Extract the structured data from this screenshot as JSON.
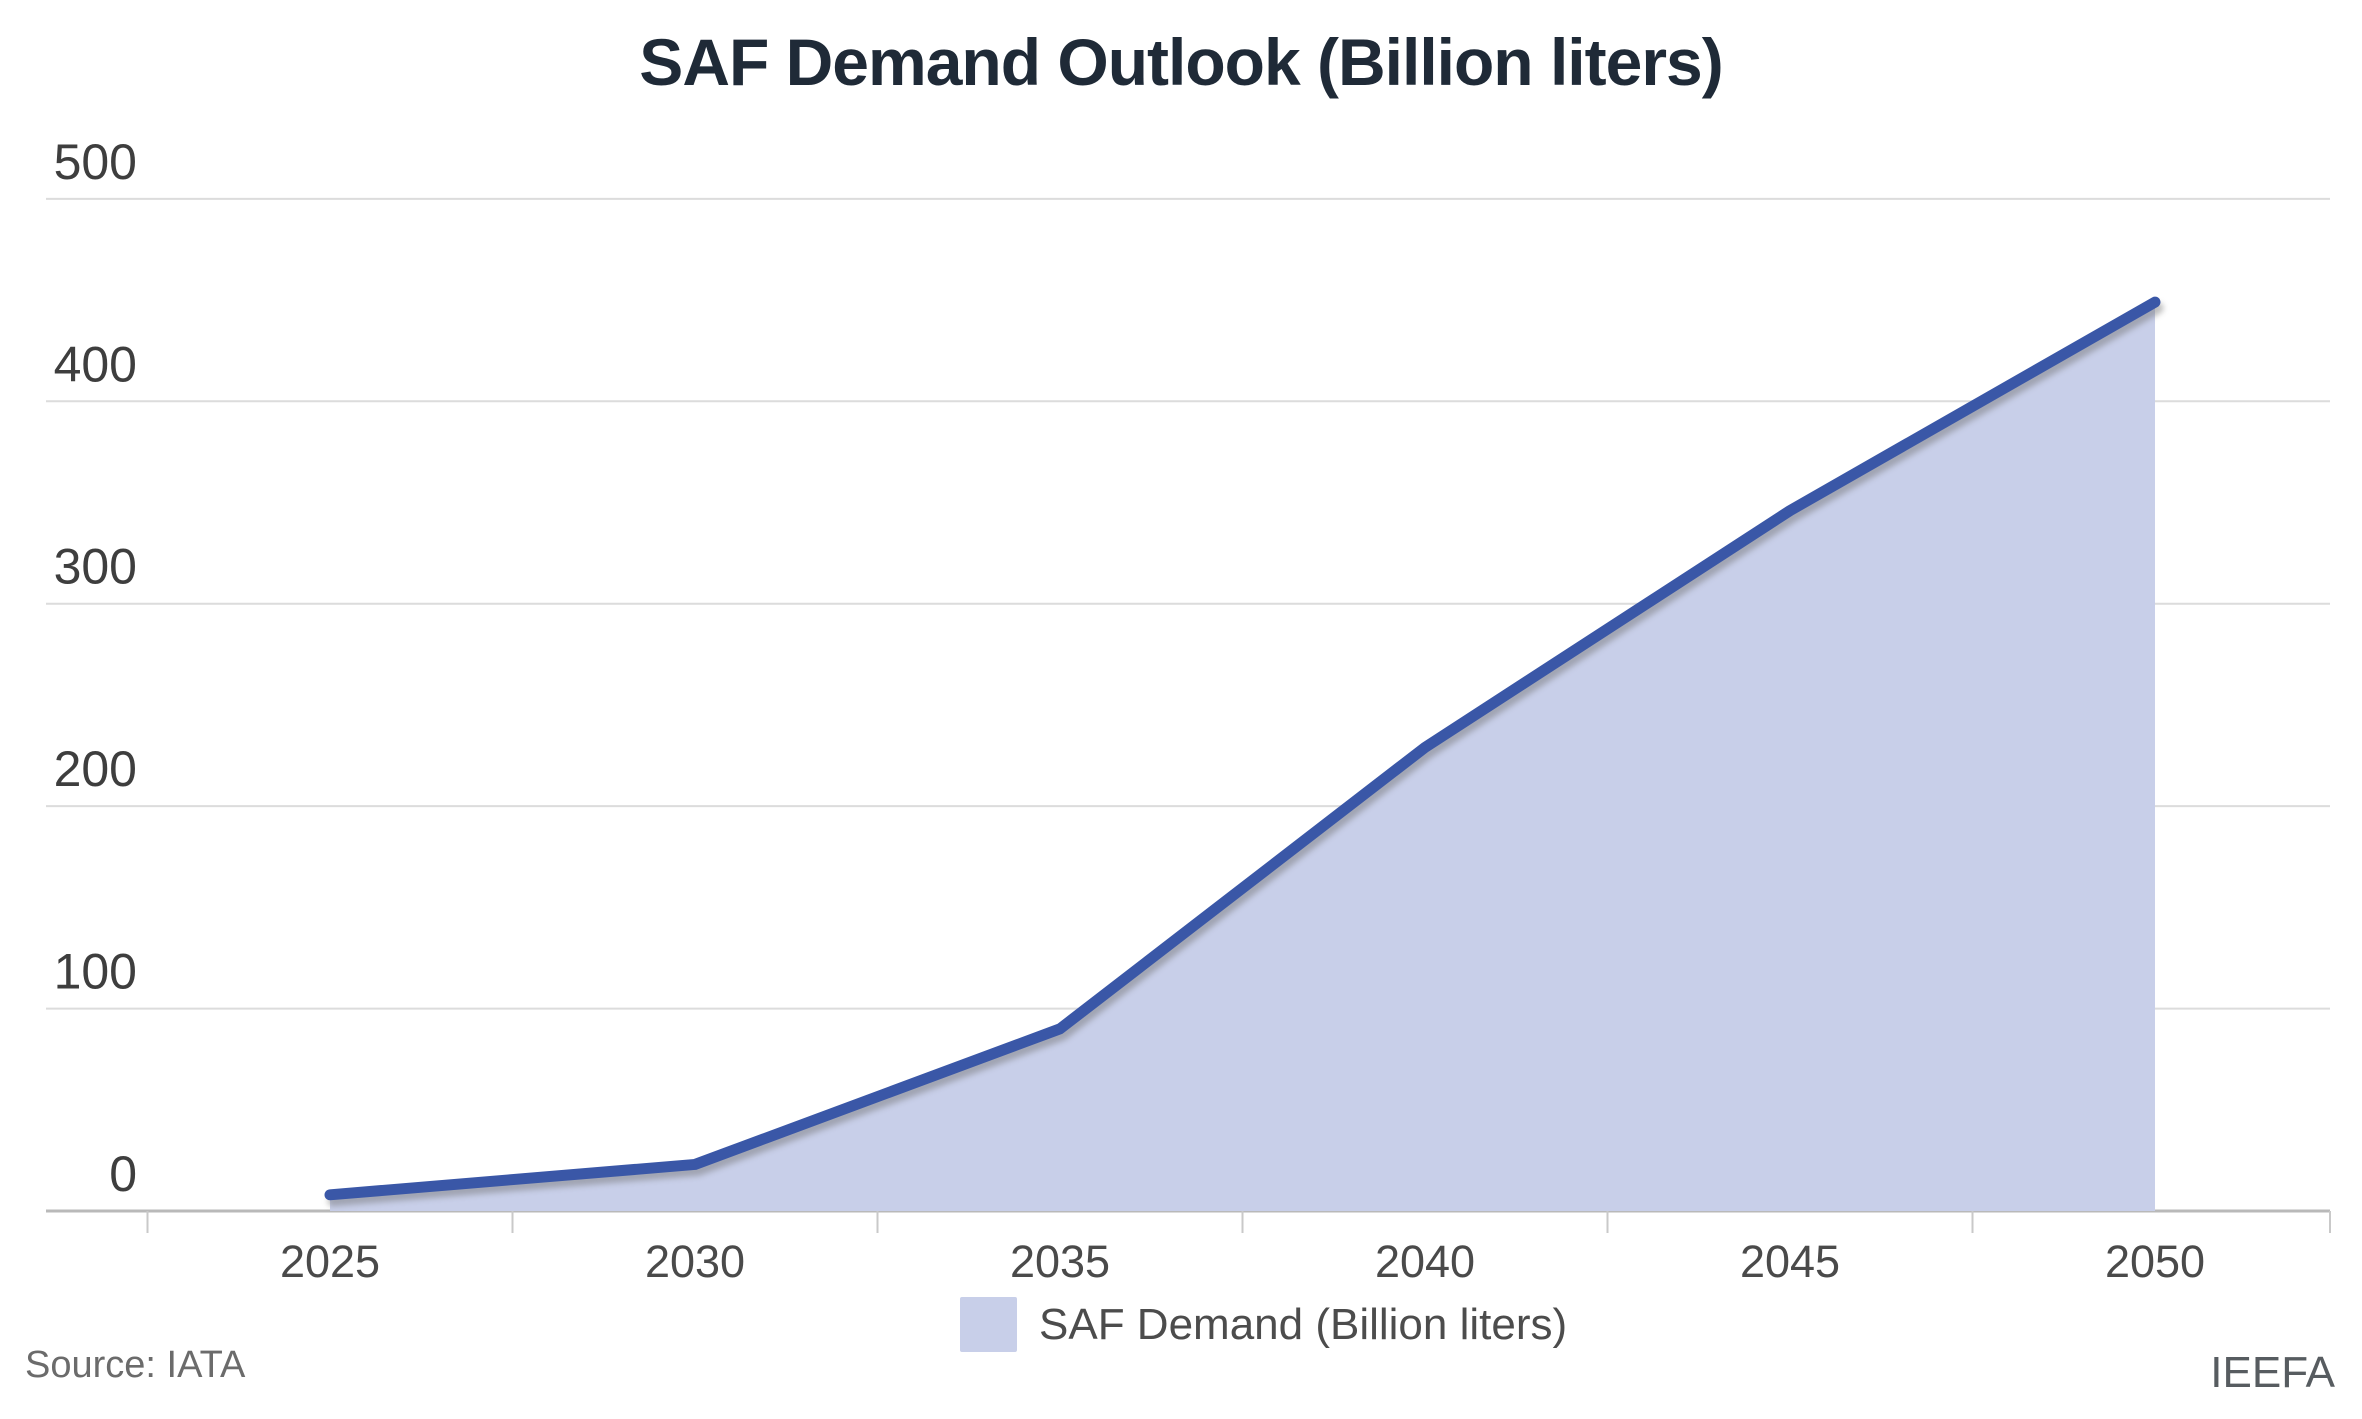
{
  "title": "SAF Demand Outlook (Billion liters)",
  "source": "Source: IATA",
  "branding": "IEEFA",
  "legend": {
    "label": "SAF Demand (Billion liters)",
    "swatch_color": "#c8cfe9"
  },
  "colors": {
    "line": "#3a57a7",
    "fill": "#c8cfe9",
    "grid": "#dcdcdc",
    "baseline": "#b9b9b9",
    "title_text": "#1f2a37",
    "tick_text": "#4a4a4a"
  },
  "chart_data": {
    "type": "area",
    "x": [
      2025,
      2030,
      2035,
      2040,
      2045,
      2050
    ],
    "series": [
      {
        "name": "SAF Demand (Billion liters)",
        "values": [
          8,
          23,
          90,
          229,
          346,
          449
        ]
      }
    ],
    "title": "SAF Demand Outlook (Billion liters)",
    "xlabel": "",
    "ylabel": "",
    "ylim": [
      0,
      500
    ],
    "y_ticks": [
      0,
      100,
      200,
      300,
      400,
      500
    ],
    "x_tick_labels": [
      "2025",
      "2030",
      "2035",
      "2040",
      "2045",
      "2050"
    ],
    "grid": true,
    "legend_position": "bottom"
  }
}
